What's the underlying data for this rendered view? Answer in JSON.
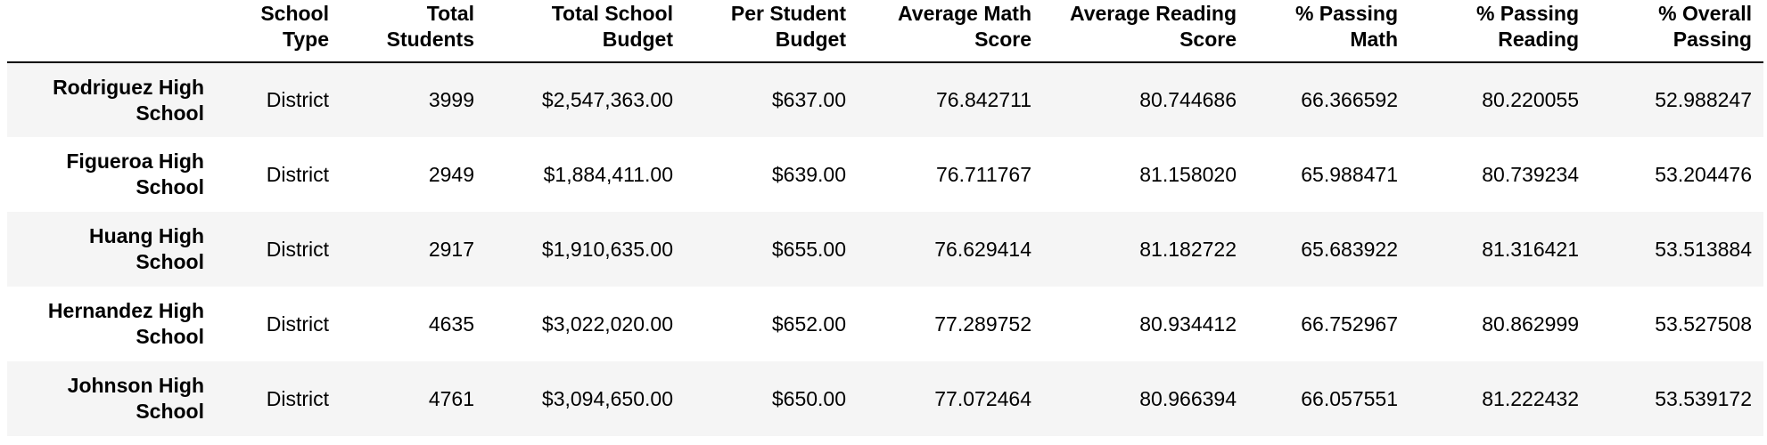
{
  "table": {
    "columns": [
      "",
      "School\nType",
      "Total\nStudents",
      "Total School\nBudget",
      "Per Student\nBudget",
      "Average Math\nScore",
      "Average Reading\nScore",
      "% Passing\nMath",
      "% Passing\nReading",
      "% Overall\nPassing"
    ],
    "header_lines": [
      {
        "top": "School",
        "bottom": "Type"
      },
      {
        "top": "Total",
        "bottom": "Students"
      },
      {
        "top": "Total School",
        "bottom": "Budget"
      },
      {
        "top": "Per Student",
        "bottom": "Budget"
      },
      {
        "top": "Average Math",
        "bottom": "Score"
      },
      {
        "top": "Average Reading",
        "bottom": "Score"
      },
      {
        "top": "% Passing",
        "bottom": "Math"
      },
      {
        "top": "% Passing",
        "bottom": "Reading"
      },
      {
        "top": "% Overall",
        "bottom": "Passing"
      }
    ],
    "rows": [
      {
        "school_name_line1": "Rodriguez High",
        "school_name_line2": "School",
        "school_type": "District",
        "total_students": "3999",
        "total_budget": "$2,547,363.00",
        "per_student_budget": "$637.00",
        "avg_math": "76.842711",
        "avg_reading": "80.744686",
        "pct_math": "66.366592",
        "pct_reading": "80.220055",
        "pct_overall": "52.988247"
      },
      {
        "school_name_line1": "Figueroa High",
        "school_name_line2": "School",
        "school_type": "District",
        "total_students": "2949",
        "total_budget": "$1,884,411.00",
        "per_student_budget": "$639.00",
        "avg_math": "76.711767",
        "avg_reading": "81.158020",
        "pct_math": "65.988471",
        "pct_reading": "80.739234",
        "pct_overall": "53.204476"
      },
      {
        "school_name_line1": "Huang High",
        "school_name_line2": "School",
        "school_type": "District",
        "total_students": "2917",
        "total_budget": "$1,910,635.00",
        "per_student_budget": "$655.00",
        "avg_math": "76.629414",
        "avg_reading": "81.182722",
        "pct_math": "65.683922",
        "pct_reading": "81.316421",
        "pct_overall": "53.513884"
      },
      {
        "school_name_line1": "Hernandez High",
        "school_name_line2": "School",
        "school_type": "District",
        "total_students": "4635",
        "total_budget": "$3,022,020.00",
        "per_student_budget": "$652.00",
        "avg_math": "77.289752",
        "avg_reading": "80.934412",
        "pct_math": "66.752967",
        "pct_reading": "80.862999",
        "pct_overall": "53.527508"
      },
      {
        "school_name_line1": "Johnson High",
        "school_name_line2": "School",
        "school_type": "District",
        "total_students": "4761",
        "total_budget": "$3,094,650.00",
        "per_student_budget": "$650.00",
        "avg_math": "77.072464",
        "avg_reading": "80.966394",
        "pct_math": "66.057551",
        "pct_reading": "81.222432",
        "pct_overall": "53.539172"
      }
    ]
  },
  "colors": {
    "row_shade": "#f5f5f5",
    "row_plain": "#ffffff",
    "header_rule": "#000000",
    "text": "#000000"
  }
}
